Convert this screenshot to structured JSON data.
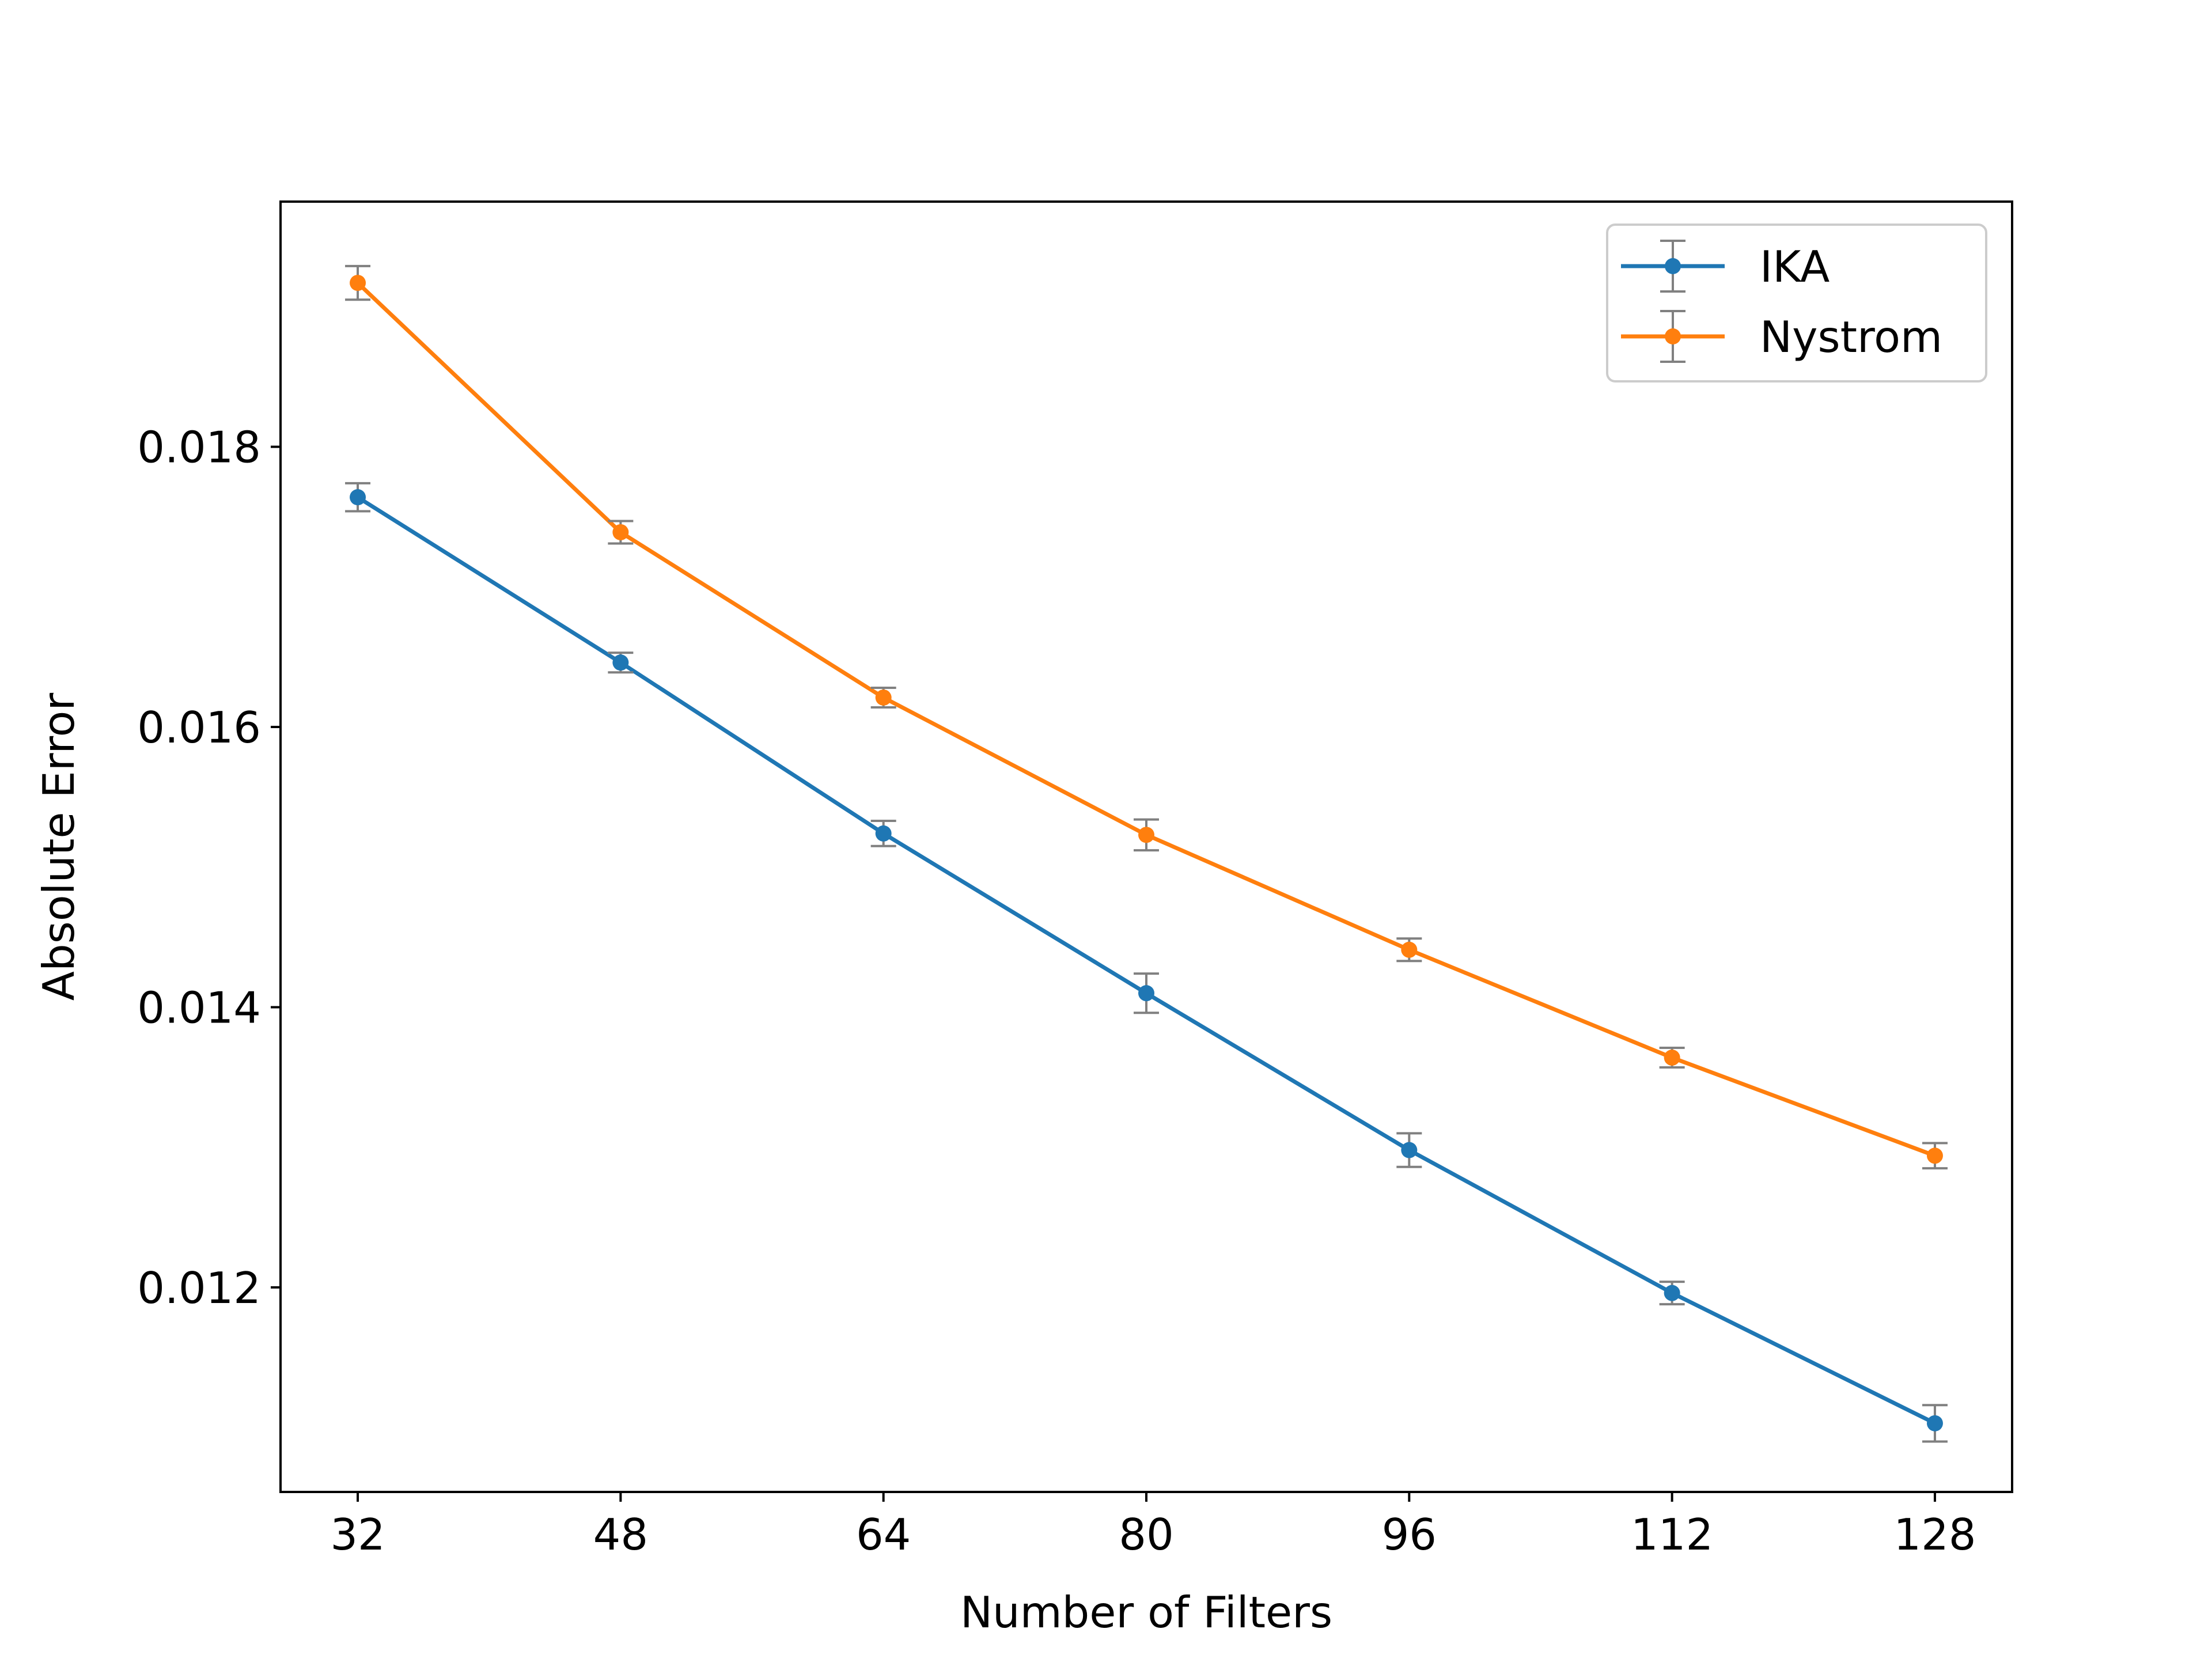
{
  "chart_data": {
    "type": "line",
    "title": "",
    "xlabel": "Number of Filters",
    "ylabel": "Absolute Error",
    "x": [
      32,
      48,
      64,
      80,
      96,
      112,
      128
    ],
    "x_tick_labels": [
      "32",
      "48",
      "64",
      "80",
      "96",
      "112",
      "128"
    ],
    "xlim": [
      27.3,
      132.7
    ],
    "ylim": [
      0.01054,
      0.01975
    ],
    "y_ticks": [
      0.012,
      0.014,
      0.016,
      0.018
    ],
    "y_tick_labels": [
      "0.012",
      "0.014",
      "0.016",
      "0.018"
    ],
    "grid": false,
    "legend_position": "upper right",
    "error_bar_color": "#808080",
    "series": [
      {
        "name": "IKA",
        "color": "#1f77b4",
        "values": [
          0.01764,
          0.01646,
          0.01524,
          0.0141,
          0.01298,
          0.01196,
          0.01103
        ],
        "errors": [
          0.0001,
          7e-05,
          9e-05,
          0.00014,
          0.00012,
          8e-05,
          0.00013
        ]
      },
      {
        "name": "Nystrom",
        "color": "#ff7f0e",
        "values": [
          0.01917,
          0.01739,
          0.01621,
          0.01523,
          0.01441,
          0.01364,
          0.01294
        ],
        "errors": [
          0.00012,
          8e-05,
          7e-05,
          0.00011,
          8e-05,
          7e-05,
          9e-05
        ]
      }
    ]
  }
}
